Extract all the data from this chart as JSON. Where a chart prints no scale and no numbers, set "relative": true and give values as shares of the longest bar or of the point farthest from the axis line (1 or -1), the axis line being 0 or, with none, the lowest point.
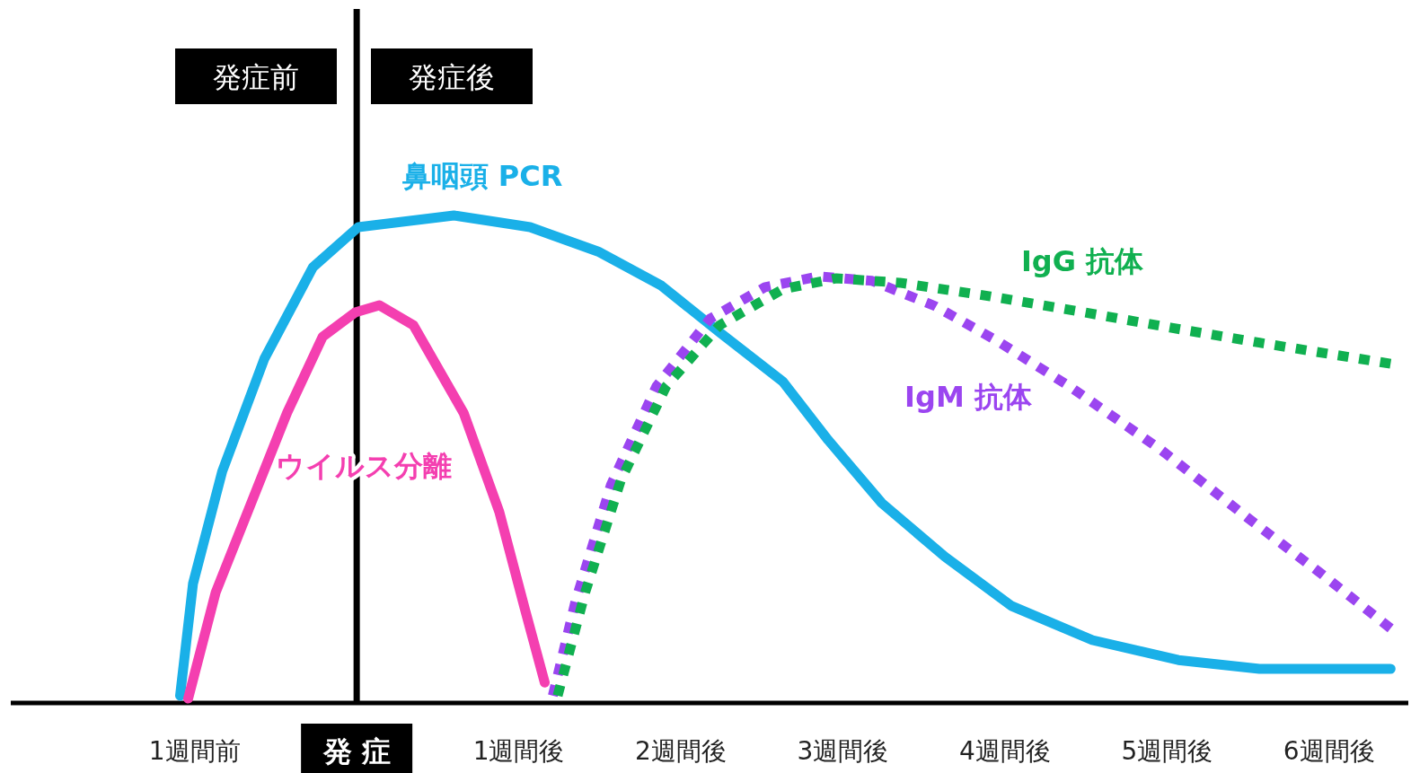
{
  "chart_data": {
    "type": "line",
    "relative": true,
    "legend": false,
    "xlim": [
      -2.14,
      6.5
    ],
    "xticks": [
      {
        "value": -1,
        "label": "1週間前"
      },
      {
        "value": 0,
        "label": "発 症"
      },
      {
        "value": 1,
        "label": "1週間後"
      },
      {
        "value": 2,
        "label": "2週間後"
      },
      {
        "value": 3,
        "label": "3週間後"
      },
      {
        "value": 4,
        "label": "4週間後"
      },
      {
        "value": 5,
        "label": "5週間後"
      },
      {
        "value": 6,
        "label": "6週間後"
      }
    ],
    "ref_lines": [
      {
        "axis": "x",
        "value": 0,
        "color": "#000000"
      }
    ],
    "annotations": [
      "発症前",
      "発症後"
    ],
    "series": [
      {
        "name": "鼻咽頭 PCR",
        "color": "#1ab0e8",
        "line_style": "solid",
        "x": [
          -1.09,
          -1.01,
          -0.83,
          -0.57,
          -0.27,
          0.01,
          0.6,
          1.07,
          1.49,
          1.88,
          2.24,
          2.63,
          2.91,
          3.24,
          3.63,
          4.04,
          4.54,
          5.07,
          5.57,
          6.38
        ],
        "values": [
          0.015,
          0.245,
          0.475,
          0.706,
          0.894,
          0.976,
          1.0,
          0.976,
          0.926,
          0.856,
          0.76,
          0.659,
          0.539,
          0.41,
          0.3,
          0.199,
          0.129,
          0.088,
          0.07,
          0.07
        ]
      },
      {
        "name": "ウイルス分離",
        "color": "#f43fb0",
        "line_style": "solid",
        "x": [
          -1.04,
          -0.87,
          -0.65,
          -0.43,
          -0.21,
          -0.01,
          0.14,
          0.35,
          0.66,
          0.88,
          1.04,
          1.16
        ],
        "values": [
          0.009,
          0.227,
          0.411,
          0.595,
          0.751,
          0.801,
          0.816,
          0.775,
          0.595,
          0.392,
          0.19,
          0.042
        ]
      },
      {
        "name": "IgM 抗体",
        "color": "#9b45f0",
        "line_style": "dotted",
        "x": [
          1.21,
          1.35,
          1.57,
          1.85,
          2.18,
          2.52,
          2.85,
          3.18,
          3.57,
          3.96,
          4.4,
          4.96,
          5.52,
          5.96,
          6.38
        ],
        "values": [
          0.015,
          0.208,
          0.448,
          0.65,
          0.788,
          0.853,
          0.875,
          0.866,
          0.814,
          0.741,
          0.649,
          0.52,
          0.374,
          0.263,
          0.153
        ]
      },
      {
        "name": "IgG 抗体",
        "color": "#10b050",
        "line_style": "dotted",
        "x": [
          1.24,
          1.41,
          1.63,
          1.91,
          2.24,
          2.63,
          2.96,
          3.35,
          3.91,
          4.46,
          5.02,
          5.57,
          6.38
        ],
        "values": [
          0.015,
          0.227,
          0.457,
          0.65,
          0.775,
          0.849,
          0.871,
          0.862,
          0.834,
          0.803,
          0.77,
          0.739,
          0.696
        ]
      }
    ]
  }
}
